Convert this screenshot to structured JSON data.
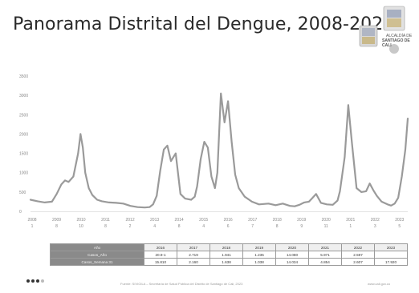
{
  "slide": {
    "title": "Panorama Distrital del Dengue, 2008-2023",
    "logo_text_1": "ALCALDÍA DE",
    "logo_text_2": "SANTIAGO DE CALI",
    "footer_source": "Fuente: SIVIGILA – Secretaría de Salud Pública del Distrito de Santiago de Cali, 2023",
    "footer_url": "www.cali.gov.co"
  },
  "chart_data": {
    "type": "line",
    "title": "",
    "xlabel": "",
    "ylabel": "",
    "ylim": [
      0,
      3500
    ],
    "yticks": [
      "3500",
      "3000",
      "2500",
      "2000",
      "1500",
      "1000",
      "500",
      "0"
    ],
    "xticks": [
      {
        "year": "2008",
        "sub": "1"
      },
      {
        "year": "2009",
        "sub": "8"
      },
      {
        "year": "2010",
        "sub": "10"
      },
      {
        "year": "2011",
        "sub": "8"
      },
      {
        "year": "2012",
        "sub": "2"
      },
      {
        "year": "2013",
        "sub": "4"
      },
      {
        "year": "2014",
        "sub": "8"
      },
      {
        "year": "2015",
        "sub": "4"
      },
      {
        "year": "2016",
        "sub": "6"
      },
      {
        "year": "2017",
        "sub": "7"
      },
      {
        "year": "2018",
        "sub": "8"
      },
      {
        "year": "2019",
        "sub": "9"
      },
      {
        "year": "2020",
        "sub": "11"
      },
      {
        "year": "2021",
        "sub": "1"
      },
      {
        "year": "2022",
        "sub": "3"
      },
      {
        "year": "2023",
        "sub": "5"
      }
    ],
    "x_range": [
      2008,
      2023.85
    ],
    "grid": false,
    "line_color": "#9a9a9a",
    "series": [
      {
        "x": [
          2008.0,
          2008.3,
          2008.6,
          2008.9,
          2009.1,
          2009.3,
          2009.45,
          2009.6,
          2009.8,
          2010.0,
          2010.1,
          2010.2,
          2010.3,
          2010.45,
          2010.6,
          2010.8,
          2011.0,
          2011.3,
          2011.6,
          2011.9,
          2012.2,
          2012.5,
          2012.8,
          2013.0,
          2013.15,
          2013.3,
          2013.45,
          2013.6,
          2013.75,
          2013.9,
          2014.1,
          2014.3,
          2014.5,
          2014.75,
          2014.9,
          2015.0,
          2015.15,
          2015.3,
          2015.45,
          2015.6,
          2015.75,
          2015.85,
          2016.0,
          2016.15,
          2016.3,
          2016.45,
          2016.6,
          2016.75,
          2017.0,
          2017.3,
          2017.6,
          2018.0,
          2018.3,
          2018.6,
          2018.9,
          2019.1,
          2019.3,
          2019.5,
          2019.7,
          2019.85,
          2020.0,
          2020.2,
          2020.45,
          2020.7,
          2020.9,
          2021.0,
          2021.2,
          2021.35,
          2021.5,
          2021.7,
          2021.9,
          2022.1,
          2022.25,
          2022.4,
          2022.55,
          2022.75,
          2023.0,
          2023.15,
          2023.3,
          2023.45,
          2023.6,
          2023.75,
          2023.85
        ],
        "y": [
          300,
          260,
          230,
          250,
          450,
          700,
          800,
          760,
          900,
          1500,
          2000,
          1650,
          1000,
          600,
          420,
          300,
          260,
          230,
          220,
          200,
          140,
          110,
          100,
          110,
          180,
          400,
          1050,
          1600,
          1700,
          1300,
          1500,
          450,
          330,
          300,
          380,
          650,
          1350,
          1800,
          1650,
          900,
          600,
          1000,
          3050,
          2300,
          2850,
          1800,
          950,
          600,
          380,
          250,
          180,
          200,
          160,
          200,
          140,
          130,
          170,
          230,
          250,
          350,
          450,
          220,
          180,
          170,
          280,
          520,
          1400,
          2750,
          1800,
          600,
          500,
          520,
          720,
          550,
          400,
          250,
          180,
          150,
          200,
          350,
          900,
          1600,
          2400
        ]
      }
    ]
  },
  "table": {
    "header": [
      "Año",
      "2016",
      "2017",
      "2018",
      "2019",
      "2020",
      "2021",
      "2022",
      "2023"
    ],
    "rows": [
      {
        "label": "Casos_Año",
        "cells": [
          "20.9-1",
          "2.719",
          "1.941",
          "1.235",
          "14.080",
          "5.971",
          "2.597",
          ""
        ]
      },
      {
        "label": "Casos_Semana 31",
        "cells": [
          "15.810",
          "2.160",
          "1.638",
          "1.038",
          "14.034",
          "4.854",
          "2.607",
          "17.920"
        ]
      }
    ]
  }
}
